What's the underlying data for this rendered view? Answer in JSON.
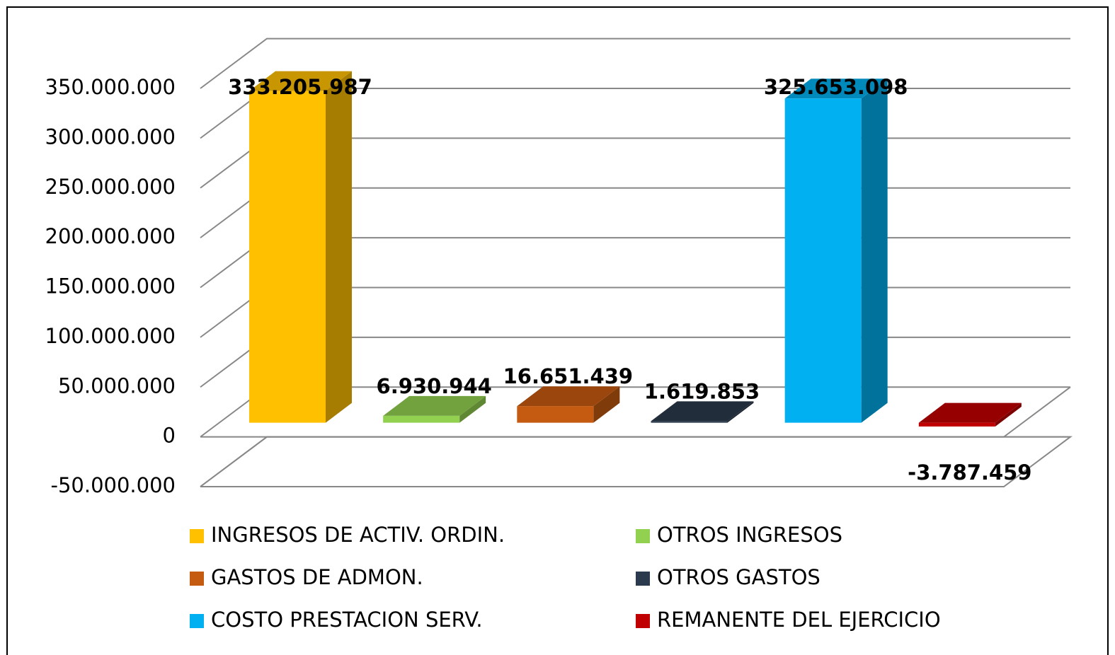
{
  "chart_data": {
    "type": "bar3d",
    "categories": [
      "INGRESOS DE ACTIV. ORDIN.",
      "OTROS INGRESOS",
      "GASTOS DE ADMON.",
      "OTROS GASTOS",
      "COSTO PRESTACION SERV.",
      "REMANENTE DEL EJERCICIO"
    ],
    "values": [
      333205987,
      6930944,
      16651439,
      1619853,
      325653098,
      -3787459
    ],
    "value_labels": [
      "333.205.987",
      "6.930.944",
      "16.651.439",
      "1.619.853",
      "325.653.098",
      "-3.787.459"
    ],
    "colors": [
      "#FFC000",
      "#92D050",
      "#C55A11",
      "#2B3A4C",
      "#00B0F0",
      "#C00000"
    ],
    "ylim": [
      -50000000,
      350000000
    ],
    "yticks": [
      {
        "value": -50000000,
        "label": "-50.000.000"
      },
      0,
      {
        "value": 50000000,
        "label": "50.000.000"
      },
      {
        "value": 100000000,
        "label": "100.000.000"
      },
      {
        "value": 150000000,
        "label": "150.000.000"
      },
      {
        "value": 200000000,
        "label": "200.000.000"
      },
      {
        "value": 250000000,
        "label": "250.000.000"
      },
      {
        "value": 300000000,
        "label": "300.000.000"
      },
      {
        "value": 350000000,
        "label": "350.000.000"
      }
    ],
    "grid": true,
    "legend": "bottom"
  }
}
